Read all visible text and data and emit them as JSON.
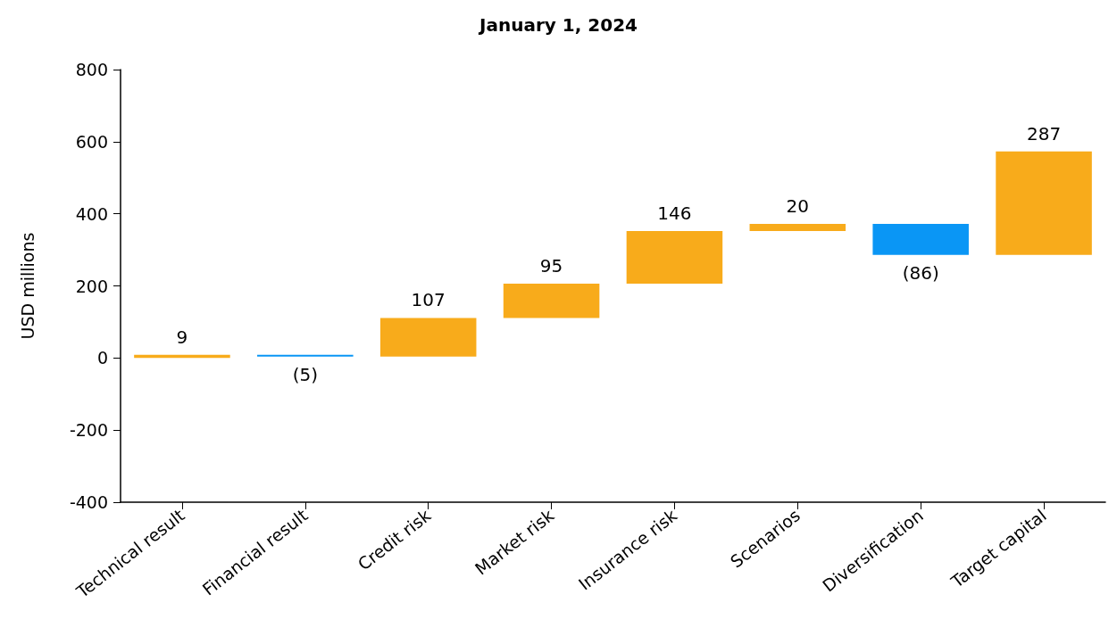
{
  "chart_data": {
    "type": "bar",
    "title": "January 1, 2024",
    "ylabel": "USD millions",
    "categories": [
      "Technical result",
      "Financial result",
      "Credit risk",
      "Market risk",
      "Insurance risk",
      "Scenarios",
      "Diversification",
      "Target capital"
    ],
    "values": [
      9,
      -5,
      107,
      95,
      146,
      20,
      -86,
      287
    ],
    "base": [
      0,
      9,
      4,
      111,
      206,
      352,
      372,
      286
    ],
    "colors": [
      "#f8ab1b",
      "#0a96f5",
      "#f8ab1b",
      "#f8ab1b",
      "#f8ab1b",
      "#f8ab1b",
      "#0a96f5",
      "#f8ab1b"
    ],
    "value_labels": [
      "9",
      "(5)",
      "107",
      "95",
      "146",
      "20",
      "(86)",
      "287"
    ],
    "ylim": [
      -400,
      800
    ],
    "yticks": [
      -400,
      -200,
      0,
      200,
      400,
      600,
      800
    ],
    "grid": false
  }
}
